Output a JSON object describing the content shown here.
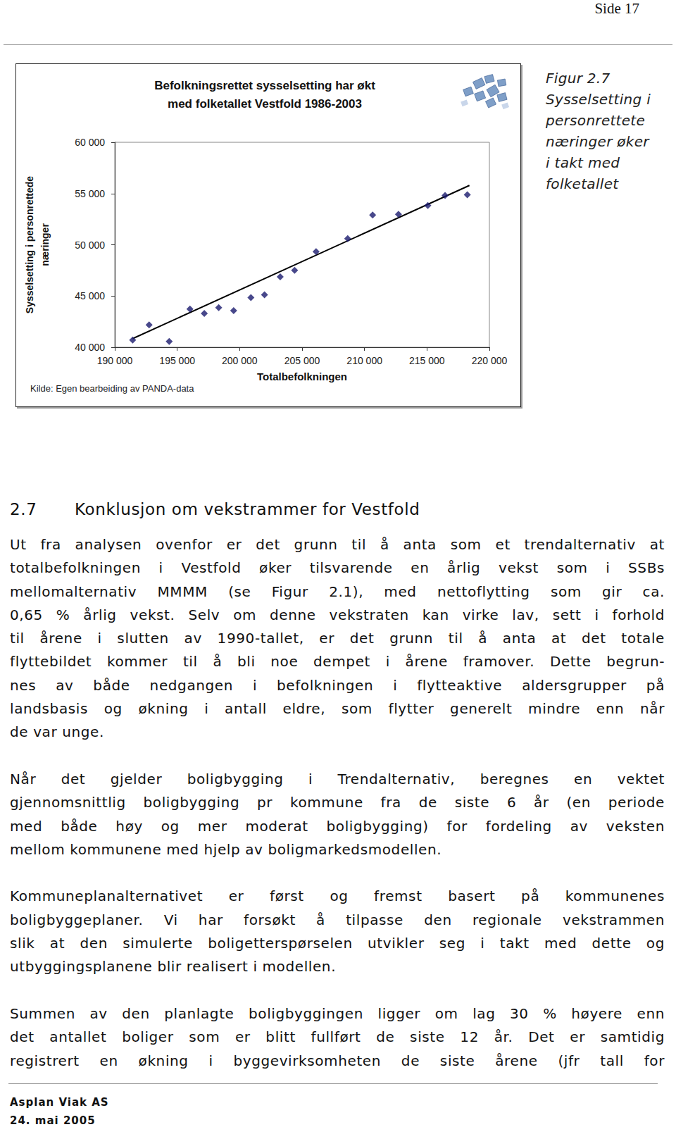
{
  "header": {
    "page": "Side 17"
  },
  "chart_data": {
    "type": "scatter",
    "title": "Befolkningsrettet sysselsetting har økt\nmed folketallet Vestfold 1986-2003",
    "xlabel": "Totalbefolkningen",
    "ylabel": "Sysselsetting i personrettede\nnæringer",
    "source": "Kilde: Egen bearbeiding av PANDA-data",
    "xlim": [
      190000,
      220000
    ],
    "xticks": [
      {
        "value": 190000,
        "label": "190 000"
      },
      {
        "value": 195000,
        "label": "195 000"
      },
      {
        "value": 200000,
        "label": "200 000"
      },
      {
        "value": 205000,
        "label": "205 000"
      },
      {
        "value": 210000,
        "label": "210 000"
      },
      {
        "value": 215000,
        "label": "215 000"
      },
      {
        "value": 220000,
        "label": "220 000"
      }
    ],
    "ylim": [
      40000,
      60000
    ],
    "yticks": [
      {
        "value": 40000,
        "label": "40 000"
      },
      {
        "value": 45000,
        "label": "45 000"
      },
      {
        "value": 50000,
        "label": "50 000"
      },
      {
        "value": 55000,
        "label": "55 000"
      },
      {
        "value": 60000,
        "label": "60 000"
      }
    ],
    "grid": false,
    "series": [
      {
        "type": "scatter",
        "color": "#1a1a6e",
        "marker": "diamond",
        "x": [
          191430,
          192750,
          194360,
          196020,
          197170,
          198320,
          199520,
          200900,
          201990,
          203250,
          204400,
          206120,
          208650,
          210650,
          212720,
          215070,
          216450,
          218230
        ],
        "values": [
          40700,
          42180,
          40560,
          43720,
          43300,
          43860,
          43580,
          44840,
          45120,
          46880,
          47510,
          49330,
          50600,
          52910,
          52980,
          53830,
          54810,
          54880
        ]
      },
      {
        "type": "line",
        "color": "#000000",
        "line_style": "solid",
        "x": [
          191430,
          218400
        ],
        "values": [
          40840,
          55790
        ]
      }
    ]
  },
  "caption": {
    "label": "Figur 2.7",
    "lines": [
      "Sysselsetting i",
      "personrettete",
      "næringer øker",
      "i takt med",
      "folketallet"
    ]
  },
  "section": {
    "number": "2.7",
    "title": "Konklusjon om vekstrammer for Vestfold"
  },
  "paragraphs": [
    [
      "Ut fra analysen ovenfor er det grunn til å anta som et trendalternativ at",
      "totalbefolkningen i Vestfold øker tilsvarende en årlig vekst som i SSBs",
      "mellomalternativ MMMM (se Figur 2.1), med nettoflytting som gir ca.",
      "0,65 % årlig vekst. Selv om denne vekstraten kan virke lav, sett i forhold",
      "til årene i slutten av 1990-tallet, er det grunn til å anta at det totale",
      "flyttebildet kommer til å bli noe dempet i årene framover. Dette begrun-",
      "nes av både nedgangen i befolkningen i flytteaktive aldersgrupper på",
      "landsbasis og økning i antall eldre, som flytter generelt mindre enn når",
      "de var unge."
    ],
    [
      "Når det gjelder boligbygging i Trendalternativ, beregnes en vektet",
      "gjennomsnittlig boligbygging pr kommune fra de siste 6 år (en periode",
      "med både høy og mer moderat boligbygging) for fordeling av veksten",
      "mellom kommunene med hjelp av boligmarkedsmodellen."
    ],
    [
      "Kommuneplanalternativet er først og fremst basert på kommunenes",
      "boligbyggeplaner. Vi har forsøkt å tilpasse den regionale vekstrammen",
      "slik at den simulerte boligetterspørselen utvikler seg i takt med dette og",
      "utbyggingsplanene blir realisert i modellen."
    ],
    [
      "Summen av den planlagte boligbyggingen ligger om lag 30 % høyere enn",
      "det antallet boliger som er blitt fullført de siste 12 år. Det er samtidig",
      "registrert en økning i byggevirksomheten de siste årene (jfr tall for"
    ]
  ],
  "footer": {
    "company": "Asplan Viak AS",
    "date": "24. mai 2005"
  }
}
